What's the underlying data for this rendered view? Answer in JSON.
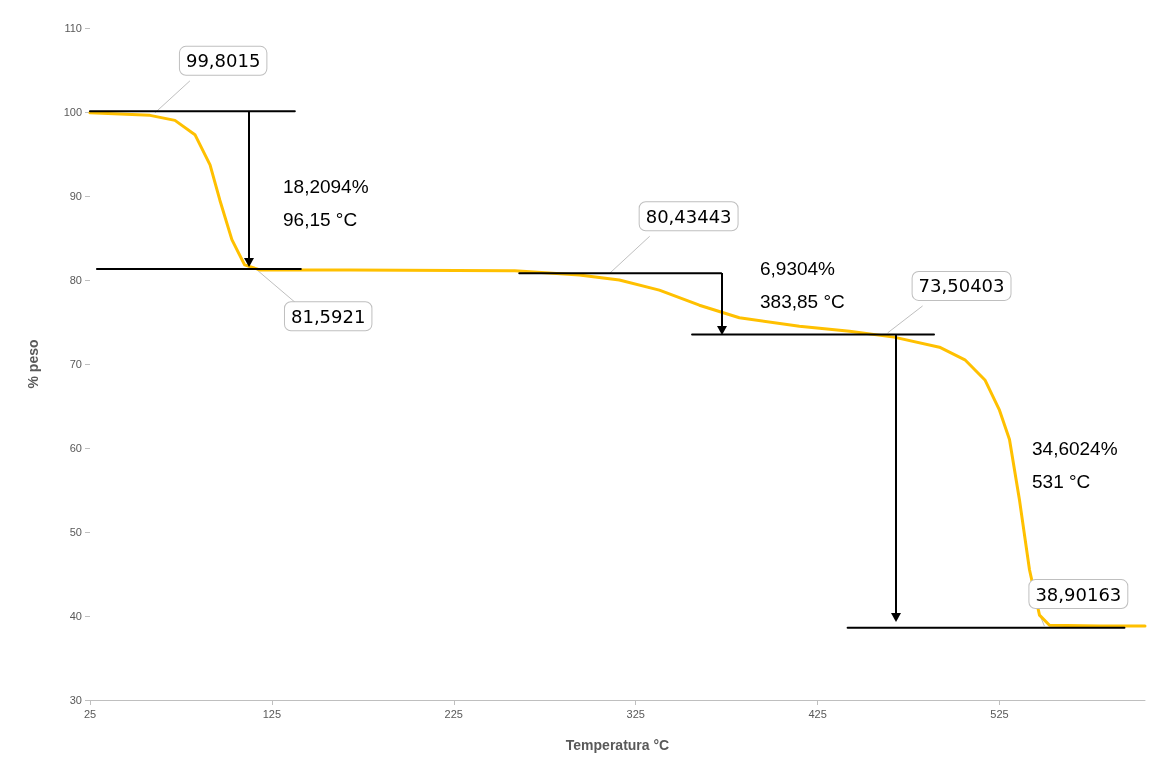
{
  "chart_data": {
    "type": "line",
    "xlabel": "Temperatura °C",
    "ylabel": "% peso",
    "xlim": [
      25,
      605
    ],
    "xticks": [
      25,
      125,
      225,
      325,
      425,
      525
    ],
    "ylim": [
      30,
      110
    ],
    "yticks": [
      30,
      40,
      50,
      60,
      70,
      80,
      90,
      100,
      110
    ],
    "grid": false,
    "marker": "none",
    "line_style": "solid",
    "series": [
      {
        "color": "#ffc000",
        "x": [
          25,
          58,
          71.7,
          82.7,
          91,
          96.4,
          103,
          110,
          118.4,
          168,
          258.5,
          294,
          316,
          338,
          360,
          382,
          415,
          442.6,
          467,
          492,
          506,
          517,
          525,
          530.5,
          536,
          541.5,
          547,
          552.5,
          580,
          605
        ],
        "values": [
          99.9,
          99.6,
          99,
          97.3,
          93.7,
          89.5,
          84.8,
          81.8,
          81.2,
          81.2,
          81.1,
          80.6,
          80,
          78.8,
          77,
          75.5,
          74.5,
          73.9,
          73.2,
          72,
          70.5,
          68.1,
          64.5,
          61,
          53.8,
          45.5,
          40.1,
          38.9,
          38.8,
          38.8
        ]
      },
      {
        "color": "#000000",
        "x": [
          25,
          137.6
        ],
        "values": [
          100.1,
          100.1
        ]
      },
      {
        "color": "#000000",
        "x": [
          28.8,
          140.9
        ],
        "values": [
          81.3,
          81.3
        ]
      },
      {
        "color": "#000000",
        "x": [
          261,
          372
        ],
        "values": [
          80.8,
          80.8
        ]
      },
      {
        "color": "#000000",
        "x": [
          356,
          489
        ],
        "values": [
          73.5,
          73.5
        ]
      },
      {
        "color": "#000000",
        "x": [
          441.5,
          593.7
        ],
        "values": [
          38.6,
          38.6
        ]
      }
    ],
    "annotations": [
      {
        "text": "99,8015",
        "x": 60.7,
        "y": 99.9
      },
      {
        "text": "81,5921",
        "x": 115.7,
        "y": 81.4
      },
      {
        "text": "80,43443",
        "x": 310.7,
        "y": 80.8
      },
      {
        "text": "73,50403",
        "x": 463.5,
        "y": 73.7
      },
      {
        "text": "38,90163",
        "x": 549.7,
        "y": 38.8
      },
      "18,2094%\n96,15 °C",
      "6,9304%\n383,85 °C",
      "34,6024%\n531 °C"
    ]
  }
}
